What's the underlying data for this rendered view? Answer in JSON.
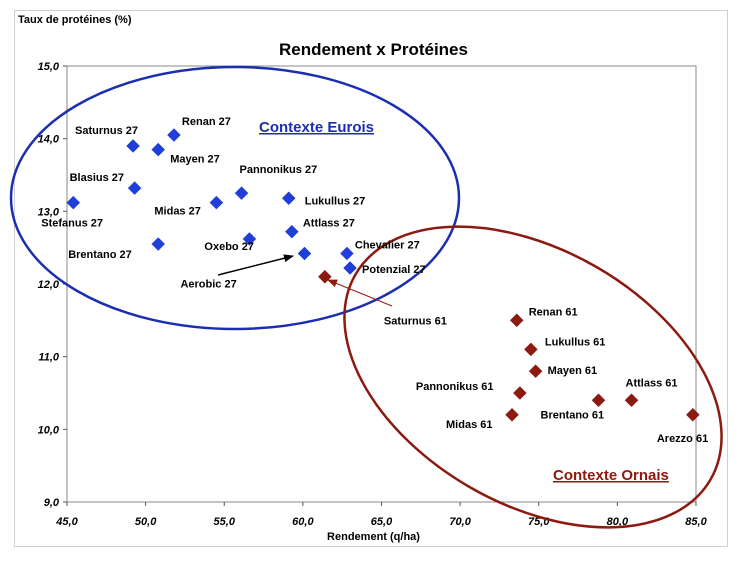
{
  "chart_data": {
    "type": "scatter",
    "title": "Rendement x Protéines",
    "xlabel": "Rendement (q/ha)",
    "ylabel": "Taux de protéines (%)",
    "xlim": [
      45.0,
      85.0
    ],
    "ylim": [
      9.0,
      15.0
    ],
    "x_ticks": [
      "45,0",
      "50,0",
      "55,0",
      "60,0",
      "65,0",
      "70,0",
      "75,0",
      "80,0",
      "85,0"
    ],
    "y_ticks": [
      "9,0",
      "10,0",
      "11,0",
      "12,0",
      "13,0",
      "14,0",
      "15,0"
    ],
    "grid": false,
    "series": [
      {
        "name": "Contexte Eurois",
        "color": "#1f3fd8",
        "marker": "diamond",
        "points": [
          {
            "label": "Saturnus 27",
            "x": 49.2,
            "y": 13.9
          },
          {
            "label": "Renan 27",
            "x": 51.8,
            "y": 14.05
          },
          {
            "label": "Mayen 27",
            "x": 50.8,
            "y": 13.85
          },
          {
            "label": "Blasius 27",
            "x": 49.3,
            "y": 13.32
          },
          {
            "label": "Stefanus 27",
            "x": 45.4,
            "y": 13.12
          },
          {
            "label": "Midas 27",
            "x": 54.5,
            "y": 13.12
          },
          {
            "label": "Pannonikus 27",
            "x": 56.1,
            "y": 13.25
          },
          {
            "label": "Lukullus 27",
            "x": 59.1,
            "y": 13.18
          },
          {
            "label": "Attlass 27",
            "x": 59.3,
            "y": 12.72
          },
          {
            "label": "Brentano 27",
            "x": 50.8,
            "y": 12.55
          },
          {
            "label": "Oxebo 27",
            "x": 56.6,
            "y": 12.62
          },
          {
            "label": "Aerobic 27",
            "x": 60.1,
            "y": 12.42
          },
          {
            "label": "Chevalier 27",
            "x": 62.8,
            "y": 12.42
          },
          {
            "label": "Potenzial 27",
            "x": 63.0,
            "y": 12.22
          }
        ]
      },
      {
        "name": "Contexte Ornais",
        "color": "#8b1a10",
        "marker": "diamond",
        "points": [
          {
            "label": "Saturnus 61",
            "x": 61.4,
            "y": 12.1
          },
          {
            "label": "Renan 61",
            "x": 73.6,
            "y": 11.5
          },
          {
            "label": "Lukullus 61",
            "x": 74.5,
            "y": 11.1
          },
          {
            "label": "Mayen 61",
            "x": 74.8,
            "y": 10.8
          },
          {
            "label": "Pannonikus 61",
            "x": 73.8,
            "y": 10.5
          },
          {
            "label": "Midas 61",
            "x": 73.3,
            "y": 10.2
          },
          {
            "label": "Brentano 61",
            "x": 78.8,
            "y": 10.4
          },
          {
            "label": "Attlass 61",
            "x": 80.9,
            "y": 10.4
          },
          {
            "label": "Arezzo 61",
            "x": 84.8,
            "y": 10.2
          }
        ]
      }
    ]
  }
}
